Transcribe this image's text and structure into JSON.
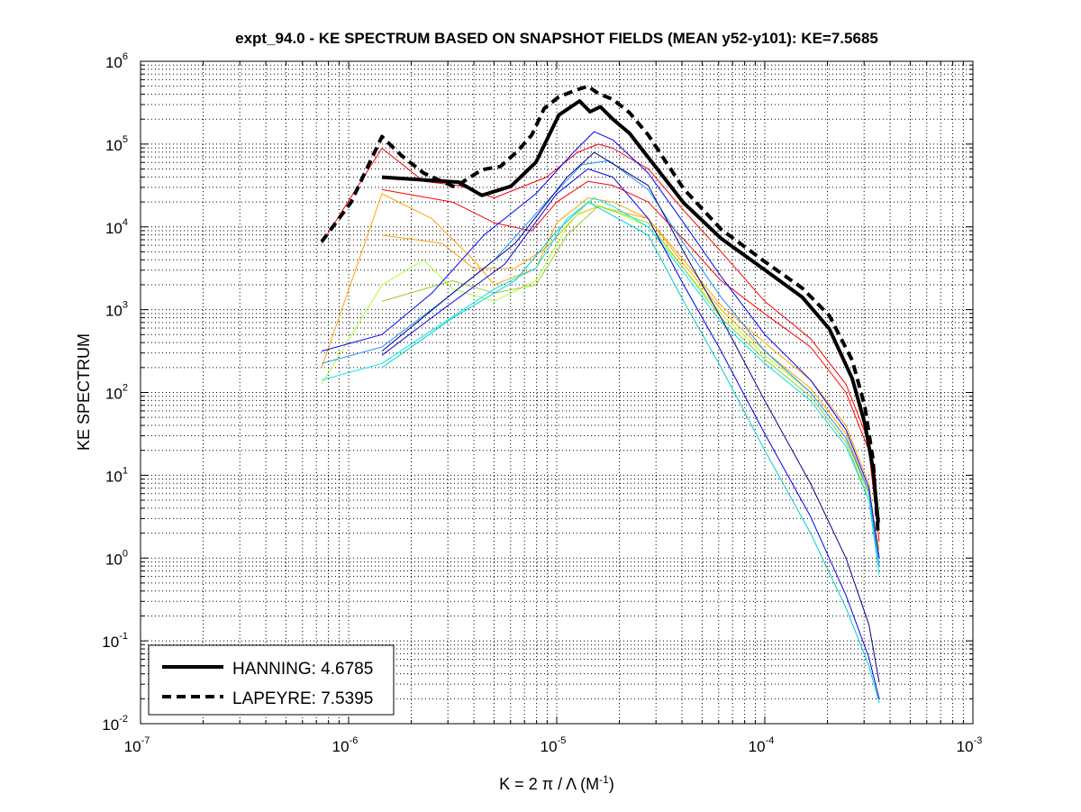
{
  "chart_data": {
    "type": "line",
    "title": "expt_94.0 - KE SPECTRUM BASED ON SNAPSHOT FIELDS (MEAN y52-y101): KE=7.5685",
    "xlabel": "K = 2 π / Λ  (M",
    "xlabel_sup": "-1",
    "xlabel_close": ")",
    "ylabel": "KE SPECTRUM",
    "xscale": "log",
    "yscale": "log",
    "xlim": [
      1e-07,
      0.001
    ],
    "ylim": [
      0.01,
      1000000.0
    ],
    "grid": "on (major and minor, dotted)",
    "legend_position": "bottom-left",
    "x_ticks": [
      {
        "base": "10",
        "exp": "-7"
      },
      {
        "base": "10",
        "exp": "-6"
      },
      {
        "base": "10",
        "exp": "-5"
      },
      {
        "base": "10",
        "exp": "-4"
      },
      {
        "base": "10",
        "exp": "-3"
      }
    ],
    "y_ticks": [
      {
        "base": "10",
        "exp": "-2"
      },
      {
        "base": "10",
        "exp": "-1"
      },
      {
        "base": "10",
        "exp": "0"
      },
      {
        "base": "10",
        "exp": "1"
      },
      {
        "base": "10",
        "exp": "2"
      },
      {
        "base": "10",
        "exp": "3"
      },
      {
        "base": "10",
        "exp": "4"
      },
      {
        "base": "10",
        "exp": "5"
      },
      {
        "base": "10",
        "exp": "6"
      }
    ],
    "points_format": "[log10(K), log10(KE)]",
    "series": [
      {
        "name": "red-a",
        "color": "#ff0000",
        "width": 1,
        "dash": "",
        "legend": false,
        "points": [
          [
            -6.13,
            3.8
          ],
          [
            -5.84,
            4.95
          ],
          [
            -5.64,
            4.55
          ],
          [
            -5.47,
            4.5
          ],
          [
            -5.3,
            4.35
          ],
          [
            -5.2,
            4.45
          ],
          [
            -5.05,
            4.6
          ],
          [
            -4.9,
            4.9
          ],
          [
            -4.8,
            5.0
          ],
          [
            -4.73,
            4.95
          ],
          [
            -4.56,
            4.7
          ],
          [
            -4.39,
            4.2
          ],
          [
            -4.21,
            3.7
          ],
          [
            -4.0,
            3.1
          ],
          [
            -3.78,
            2.65
          ],
          [
            -3.61,
            2.1
          ],
          [
            -3.5,
            1.4
          ],
          [
            -3.45,
            0.4
          ]
        ]
      },
      {
        "name": "red-b",
        "color": "#ff0000",
        "width": 1,
        "dash": "",
        "legend": false,
        "points": [
          [
            -5.84,
            4.45
          ],
          [
            -5.5,
            4.3
          ],
          [
            -5.3,
            4.05
          ],
          [
            -5.12,
            3.95
          ],
          [
            -5.0,
            4.3
          ],
          [
            -4.85,
            4.55
          ],
          [
            -4.73,
            4.5
          ],
          [
            -4.56,
            4.3
          ],
          [
            -4.39,
            3.85
          ],
          [
            -4.21,
            3.35
          ],
          [
            -4.0,
            2.95
          ],
          [
            -3.78,
            2.55
          ],
          [
            -3.61,
            2.0
          ],
          [
            -3.5,
            1.3
          ],
          [
            -3.45,
            0.2
          ]
        ]
      },
      {
        "name": "orange-a",
        "color": "#ffa500",
        "width": 1,
        "dash": "",
        "legend": false,
        "points": [
          [
            -6.13,
            2.3
          ],
          [
            -5.84,
            4.4
          ],
          [
            -5.6,
            4.1
          ],
          [
            -5.4,
            3.6
          ],
          [
            -5.3,
            3.3
          ],
          [
            -5.1,
            3.5
          ],
          [
            -5.0,
            4.05
          ],
          [
            -4.85,
            4.35
          ],
          [
            -4.73,
            4.3
          ],
          [
            -4.56,
            4.1
          ],
          [
            -4.39,
            3.6
          ],
          [
            -4.21,
            3.05
          ],
          [
            -4.0,
            2.6
          ],
          [
            -3.78,
            2.15
          ],
          [
            -3.61,
            1.6
          ],
          [
            -3.5,
            0.9
          ],
          [
            -3.45,
            0.0
          ]
        ]
      },
      {
        "name": "orange-b",
        "color": "#ffa500",
        "width": 1,
        "dash": "",
        "legend": false,
        "points": [
          [
            -5.84,
            3.9
          ],
          [
            -5.55,
            3.8
          ],
          [
            -5.4,
            3.5
          ],
          [
            -5.2,
            3.5
          ],
          [
            -5.05,
            3.75
          ],
          [
            -4.9,
            4.15
          ],
          [
            -4.8,
            4.25
          ],
          [
            -4.56,
            4.1
          ],
          [
            -4.39,
            3.55
          ],
          [
            -4.21,
            3.0
          ],
          [
            -4.0,
            2.5
          ],
          [
            -3.78,
            2.05
          ],
          [
            -3.61,
            1.5
          ],
          [
            -3.5,
            0.8
          ],
          [
            -3.45,
            0.1
          ]
        ]
      },
      {
        "name": "yellowgreen-a",
        "color": "#adff2f",
        "width": 1,
        "dash": "",
        "legend": false,
        "points": [
          [
            -6.13,
            2.1
          ],
          [
            -5.84,
            3.3
          ],
          [
            -5.64,
            3.6
          ],
          [
            -5.5,
            3.25
          ],
          [
            -5.3,
            3.1
          ],
          [
            -5.1,
            3.35
          ],
          [
            -4.95,
            4.0
          ],
          [
            -4.85,
            4.3
          ],
          [
            -4.73,
            4.2
          ],
          [
            -4.56,
            4.0
          ],
          [
            -4.39,
            3.5
          ],
          [
            -4.21,
            2.95
          ],
          [
            -4.0,
            2.45
          ],
          [
            -3.78,
            2.0
          ],
          [
            -3.61,
            1.45
          ],
          [
            -3.5,
            0.75
          ],
          [
            -3.45,
            0.0
          ]
        ]
      },
      {
        "name": "yellowgreen-b",
        "color": "#9acd32",
        "width": 1,
        "dash": "",
        "legend": false,
        "points": [
          [
            -5.84,
            3.1
          ],
          [
            -5.5,
            3.35
          ],
          [
            -5.3,
            3.2
          ],
          [
            -5.1,
            3.3
          ],
          [
            -4.95,
            3.9
          ],
          [
            -4.8,
            4.25
          ],
          [
            -4.56,
            4.05
          ],
          [
            -4.39,
            3.5
          ],
          [
            -4.21,
            2.9
          ],
          [
            -4.0,
            2.4
          ],
          [
            -3.78,
            1.95
          ],
          [
            -3.61,
            1.4
          ],
          [
            -3.5,
            0.7
          ],
          [
            -3.45,
            -0.1
          ]
        ]
      },
      {
        "name": "cyan-a",
        "color": "#00e5ee",
        "width": 1,
        "dash": "",
        "legend": false,
        "points": [
          [
            -6.13,
            2.15
          ],
          [
            -5.84,
            2.35
          ],
          [
            -5.6,
            2.75
          ],
          [
            -5.3,
            3.25
          ],
          [
            -5.1,
            3.5
          ],
          [
            -4.95,
            4.1
          ],
          [
            -4.82,
            4.35
          ],
          [
            -4.73,
            4.25
          ],
          [
            -4.56,
            4.0
          ],
          [
            -4.39,
            3.45
          ],
          [
            -4.21,
            2.85
          ],
          [
            -4.0,
            2.35
          ],
          [
            -3.78,
            1.9
          ],
          [
            -3.61,
            1.35
          ],
          [
            -3.5,
            0.7
          ],
          [
            -3.45,
            -0.2
          ]
        ]
      },
      {
        "name": "cyan-b",
        "color": "#00ced1",
        "width": 1,
        "dash": "",
        "legend": false,
        "points": [
          [
            -5.84,
            2.3
          ],
          [
            -5.5,
            2.9
          ],
          [
            -5.2,
            3.35
          ],
          [
            -5.0,
            3.95
          ],
          [
            -4.85,
            4.3
          ],
          [
            -4.56,
            3.9
          ],
          [
            -4.39,
            3.1
          ],
          [
            -4.21,
            2.3
          ],
          [
            -4.0,
            1.3
          ],
          [
            -3.78,
            0.3
          ],
          [
            -3.61,
            -0.6
          ],
          [
            -3.5,
            -1.3
          ],
          [
            -3.45,
            -1.75
          ]
        ]
      },
      {
        "name": "blue-a",
        "color": "#0000ff",
        "width": 1,
        "dash": "",
        "legend": false,
        "points": [
          [
            -6.13,
            2.5
          ],
          [
            -5.84,
            2.7
          ],
          [
            -5.6,
            3.2
          ],
          [
            -5.35,
            3.9
          ],
          [
            -5.1,
            4.4
          ],
          [
            -4.92,
            4.9
          ],
          [
            -4.82,
            5.15
          ],
          [
            -4.73,
            5.05
          ],
          [
            -4.56,
            4.65
          ],
          [
            -4.39,
            4.05
          ],
          [
            -4.21,
            3.4
          ],
          [
            -4.0,
            2.7
          ],
          [
            -3.78,
            2.15
          ],
          [
            -3.61,
            1.55
          ],
          [
            -3.5,
            0.85
          ],
          [
            -3.45,
            0.0
          ]
        ]
      },
      {
        "name": "blue-b",
        "color": "#0000ee",
        "width": 1,
        "dash": "",
        "legend": false,
        "points": [
          [
            -5.84,
            2.45
          ],
          [
            -5.55,
            3.0
          ],
          [
            -5.25,
            3.55
          ],
          [
            -5.0,
            4.4
          ],
          [
            -4.85,
            4.7
          ],
          [
            -4.73,
            4.6
          ],
          [
            -4.56,
            4.1
          ],
          [
            -4.39,
            3.3
          ],
          [
            -4.21,
            2.5
          ],
          [
            -4.0,
            1.5
          ],
          [
            -3.78,
            0.5
          ],
          [
            -3.61,
            -0.45
          ],
          [
            -3.5,
            -1.2
          ],
          [
            -3.45,
            -1.7
          ]
        ]
      },
      {
        "name": "dodgerblue",
        "color": "#1e90ff",
        "width": 1,
        "dash": "",
        "legend": false,
        "points": [
          [
            -6.13,
            2.35
          ],
          [
            -5.84,
            2.55
          ],
          [
            -5.55,
            3.1
          ],
          [
            -5.3,
            3.6
          ],
          [
            -5.05,
            4.3
          ],
          [
            -4.88,
            4.75
          ],
          [
            -4.75,
            4.8
          ],
          [
            -4.56,
            4.45
          ],
          [
            -4.39,
            3.8
          ],
          [
            -4.21,
            3.15
          ],
          [
            -4.0,
            2.5
          ],
          [
            -3.78,
            2.0
          ],
          [
            -3.61,
            1.45
          ],
          [
            -3.5,
            0.8
          ],
          [
            -3.45,
            -0.1
          ]
        ]
      },
      {
        "name": "navy",
        "color": "#00008b",
        "width": 1,
        "dash": "",
        "legend": false,
        "points": [
          [
            -5.84,
            2.5
          ],
          [
            -5.5,
            3.2
          ],
          [
            -5.2,
            3.8
          ],
          [
            -4.95,
            4.6
          ],
          [
            -4.82,
            4.9
          ],
          [
            -4.56,
            4.5
          ],
          [
            -4.39,
            3.7
          ],
          [
            -4.21,
            2.9
          ],
          [
            -4.0,
            1.9
          ],
          [
            -3.78,
            0.9
          ],
          [
            -3.61,
            0.0
          ],
          [
            -3.5,
            -0.8
          ],
          [
            -3.45,
            -1.5
          ]
        ]
      },
      {
        "name": "hanning",
        "label": "HANNING: 4.6785",
        "color": "#000000",
        "width": 4,
        "dash": "",
        "legend": true,
        "points": [
          [
            -5.84,
            4.6
          ],
          [
            -5.47,
            4.54
          ],
          [
            -5.36,
            4.38
          ],
          [
            -5.22,
            4.49
          ],
          [
            -5.1,
            4.78
          ],
          [
            -4.99,
            5.35
          ],
          [
            -4.89,
            5.52
          ],
          [
            -4.84,
            5.39
          ],
          [
            -4.79,
            5.45
          ],
          [
            -4.73,
            5.3
          ],
          [
            -4.65,
            5.13
          ],
          [
            -4.56,
            4.84
          ],
          [
            -4.39,
            4.29
          ],
          [
            -4.21,
            3.86
          ],
          [
            -4.0,
            3.48
          ],
          [
            -3.82,
            3.15
          ],
          [
            -3.69,
            2.77
          ],
          [
            -3.58,
            2.17
          ],
          [
            -3.52,
            1.63
          ],
          [
            -3.48,
            1.08
          ],
          [
            -3.455,
            0.43
          ]
        ]
      },
      {
        "name": "lapeyre",
        "label": "LAPEYRE: 7.5395",
        "color": "#000000",
        "width": 4,
        "dash": "10,6",
        "legend": true,
        "points": [
          [
            -6.13,
            3.82
          ],
          [
            -5.99,
            4.29
          ],
          [
            -5.84,
            5.09
          ],
          [
            -5.75,
            4.87
          ],
          [
            -5.64,
            4.65
          ],
          [
            -5.49,
            4.48
          ],
          [
            -5.36,
            4.69
          ],
          [
            -5.27,
            4.73
          ],
          [
            -5.19,
            4.91
          ],
          [
            -5.12,
            5.11
          ],
          [
            -5.06,
            5.43
          ],
          [
            -4.99,
            5.57
          ],
          [
            -4.91,
            5.65
          ],
          [
            -4.85,
            5.7
          ],
          [
            -4.8,
            5.61
          ],
          [
            -4.73,
            5.54
          ],
          [
            -4.65,
            5.38
          ],
          [
            -4.56,
            5.11
          ],
          [
            -4.39,
            4.46
          ],
          [
            -4.21,
            3.97
          ],
          [
            -4.0,
            3.58
          ],
          [
            -3.82,
            3.26
          ],
          [
            -3.69,
            2.93
          ],
          [
            -3.58,
            2.39
          ],
          [
            -3.52,
            1.84
          ],
          [
            -3.48,
            1.19
          ],
          [
            -3.455,
            0.27
          ]
        ]
      }
    ]
  }
}
